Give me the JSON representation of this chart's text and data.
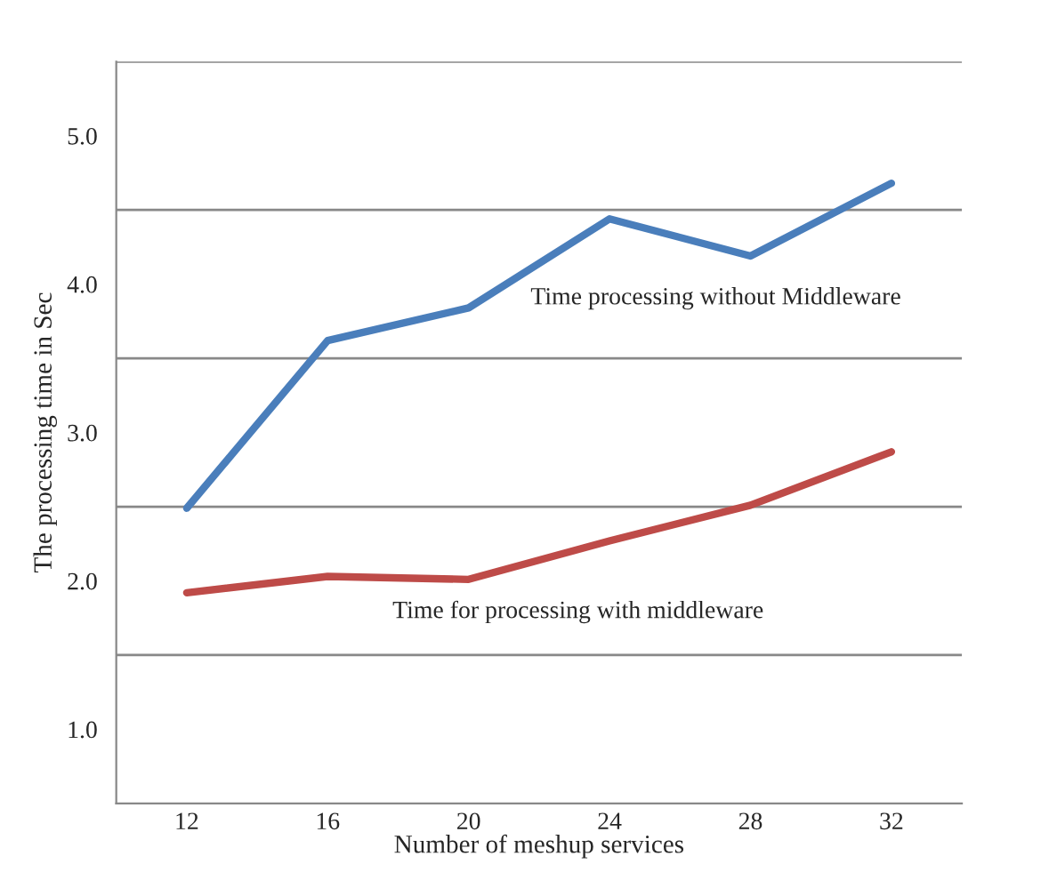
{
  "chart_data": {
    "type": "line",
    "xlabel": "Number of meshup services",
    "ylabel": "The processing time in Sec",
    "categories": [
      "12",
      "16",
      "20",
      "24",
      "28",
      "32"
    ],
    "series": [
      {
        "name": "Time processing without Middleware",
        "color": "#4a7ebb",
        "values": [
          2.49,
          3.62,
          3.84,
          4.44,
          4.19,
          4.68
        ]
      },
      {
        "name": "Time for processing with middleware",
        "color": "#be4b48",
        "values": [
          1.92,
          2.03,
          2.01,
          2.27,
          2.51,
          2.87
        ]
      }
    ],
    "ylim": [
      0.5,
      5.5
    ],
    "yticks": [
      {
        "value": 1.0,
        "label": "1.0"
      },
      {
        "value": 2.0,
        "label": "2.0"
      },
      {
        "value": 3.0,
        "label": "3.0"
      },
      {
        "value": 4.0,
        "label": "4.0"
      },
      {
        "value": 5.0,
        "label": "5.0"
      },
      {
        "value": 1.5,
        "label": null
      },
      {
        "value": 2.5,
        "label": null
      },
      {
        "value": 3.5,
        "label": null
      },
      {
        "value": 4.5,
        "label": null
      },
      {
        "value": 5.5,
        "label": null
      }
    ],
    "grid": "y",
    "legend": false,
    "marker": "none",
    "line_style": "solid"
  }
}
